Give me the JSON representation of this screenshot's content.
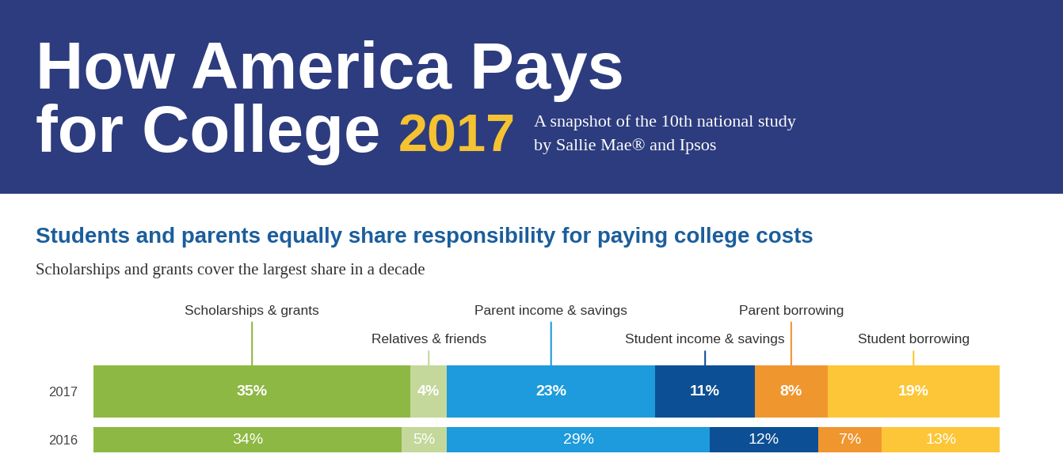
{
  "header": {
    "title": [
      "How America Pays",
      "for College"
    ],
    "year": "2017",
    "subtitle": [
      "A snapshot of the 10th national study",
      "by Sallie Mae® and Ipsos"
    ]
  },
  "chart_data": {
    "type": "bar",
    "orientation": "horizontal",
    "stacked": true,
    "title": "Students and parents equally share responsibility for paying college costs",
    "subtitle": "Scholarships and grants cover the largest share in a decade",
    "categories": [
      "2017",
      "2016"
    ],
    "xlim": [
      0,
      100
    ],
    "tick_labels": "y",
    "data_labels": true,
    "series": [
      {
        "name": "Scholarships & grants",
        "color": "#8db843",
        "values": [
          35,
          34
        ],
        "value_labels": [
          "35%",
          "34%"
        ]
      },
      {
        "name": "Relatives & friends",
        "color": "#c3d89a",
        "values": [
          4,
          5
        ],
        "value_labels": [
          "4%",
          "5%"
        ]
      },
      {
        "name": "Parent income & savings",
        "color": "#1d9bdc",
        "values": [
          23,
          29
        ],
        "value_labels": [
          "23%",
          "29%"
        ]
      },
      {
        "name": "Student income & savings",
        "color": "#0d4f94",
        "values": [
          11,
          12
        ],
        "value_labels": [
          "11%",
          "12%"
        ]
      },
      {
        "name": "Parent borrowing",
        "color": "#f0962f",
        "values": [
          8,
          7
        ],
        "value_labels": [
          "8%",
          "7%"
        ]
      },
      {
        "name": "Student borrowing",
        "color": "#fcc638",
        "values": [
          19,
          13
        ],
        "value_labels": [
          "19%",
          "13%"
        ]
      }
    ]
  }
}
